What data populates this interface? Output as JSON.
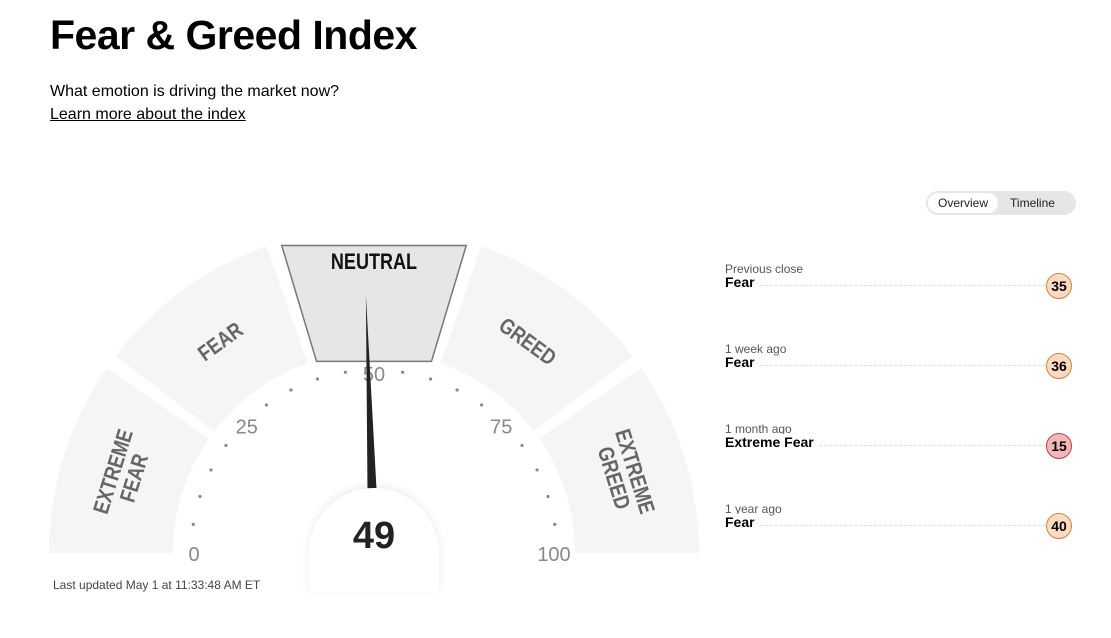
{
  "header": {
    "title": "Fear & Greed Index",
    "subtitle": "What emotion is driving the market now?",
    "learn_more": "Learn more about the index"
  },
  "gauge": {
    "value": 49,
    "rating": "Neutral",
    "segments": [
      "EXTREME FEAR",
      "FEAR",
      "NEUTRAL",
      "GREED",
      "EXTREME GREED"
    ],
    "active_segment": 2,
    "tick_labels": [
      "0",
      "25",
      "50",
      "75",
      "100"
    ],
    "last_updated": "Last updated May 1 at 11:33:48 AM ET"
  },
  "toggle": {
    "options": [
      "Overview",
      "Timeline"
    ],
    "selected": "Overview"
  },
  "history": [
    {
      "when": "Previous close",
      "rating": "Fear",
      "value": "35"
    },
    {
      "when": "1 week ago",
      "rating": "Fear",
      "value": "36"
    },
    {
      "when": "1 month ago",
      "rating": "Extreme Fear",
      "value": "15"
    },
    {
      "when": "1 year ago",
      "rating": "Fear",
      "value": "40"
    }
  ],
  "colors": {
    "segment": "#f5f5f5",
    "active_segment": "#e6e6e6",
    "needle": "#222222",
    "fear_badge": "#fcd9c2",
    "extreme_fear_badge": "#f4b6b6"
  }
}
